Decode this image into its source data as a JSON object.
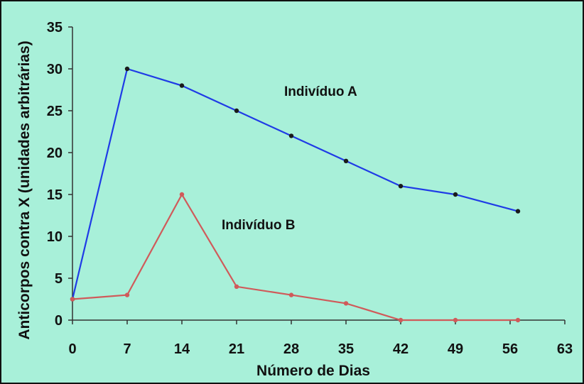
{
  "colors": {
    "background": "#a8f0d9",
    "frame": "#111111",
    "axis": "#333333",
    "series_a": "#1f3be6",
    "series_b": "#d05a5a"
  },
  "chart_data": {
    "type": "line",
    "title": "",
    "xlabel": "Número de Dias",
    "ylabel": "Anticorpos contra X (unidades arbitrárias)",
    "xlim": [
      0,
      63
    ],
    "ylim": [
      0,
      35
    ],
    "x_ticks": [
      "0",
      "7",
      "14",
      "21",
      "28",
      "35",
      "42",
      "49",
      "56",
      "63"
    ],
    "y_ticks": [
      "0",
      "5",
      "10",
      "15",
      "20",
      "25",
      "30",
      "35"
    ],
    "grid": false,
    "legend": "none",
    "series": [
      {
        "name": "Indivíduo A",
        "color": "#1f3be6",
        "x": [
          0,
          7,
          14,
          21,
          28,
          35,
          42,
          49,
          57
        ],
        "y": [
          2.5,
          30,
          28,
          25,
          22,
          19,
          16,
          15,
          13
        ]
      },
      {
        "name": "Indivíduo B",
        "color": "#d05a5a",
        "x": [
          0,
          7,
          14,
          21,
          28,
          35,
          42,
          49,
          57
        ],
        "y": [
          2.5,
          3,
          15,
          4,
          3,
          2,
          0,
          0,
          0
        ]
      }
    ]
  }
}
